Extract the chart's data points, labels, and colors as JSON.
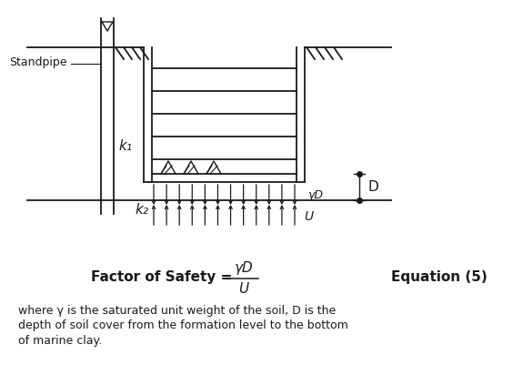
{
  "background_color": "#ffffff",
  "fig_width": 5.64,
  "fig_height": 4.23,
  "dpi": 100,
  "standpipe_label": "Standpipe",
  "k1_label": "k₁",
  "k2_label": "k₂",
  "gammaD_label": "γD",
  "D_label": "D",
  "U_label": "U",
  "equation_lhs": "Factor of Safety = ",
  "equation_numerator": "γD",
  "equation_denominator": "U",
  "equation_rhs": "Equation (5)",
  "description_line1": "where γ is the saturated unit weight of the soil, D is the",
  "description_line2": "depth of soil cover from the formation level to the bottom",
  "description_line3": "of marine clay."
}
